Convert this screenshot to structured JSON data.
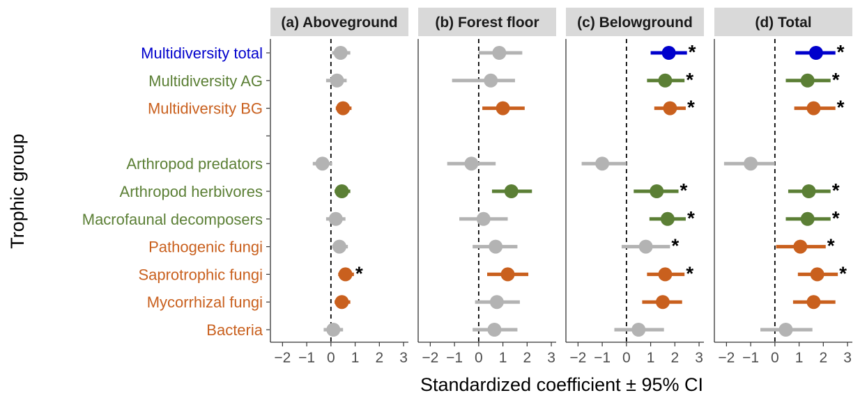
{
  "chart_data": {
    "type": "forest",
    "xlabel": "Standardized coefficient ± 95% CI",
    "ylabel": "Trophic group",
    "xlim": [
      -2.5,
      3.2
    ],
    "xticks": [
      -2,
      -1,
      0,
      1,
      2,
      3
    ],
    "xtick_labels": [
      "−2",
      "−1",
      "0",
      "1",
      "2",
      "3"
    ],
    "reference_line": 0,
    "colors": {
      "total": "#0000cc",
      "aboveground": "#5b7f35",
      "belowground": "#c9601e",
      "nonsignificant": "#b3b3b3"
    },
    "rows": [
      {
        "label": "Multidiversity total",
        "group": "total"
      },
      {
        "label": "Multidiversity AG",
        "group": "aboveground"
      },
      {
        "label": "Multidiversity BG",
        "group": "belowground"
      },
      {
        "label": "",
        "group": "spacer"
      },
      {
        "label": "Arthropod predators",
        "group": "aboveground"
      },
      {
        "label": "Arthropod herbivores",
        "group": "aboveground"
      },
      {
        "label": "Macrofaunal decomposers",
        "group": "aboveground"
      },
      {
        "label": "Pathogenic fungi",
        "group": "belowground"
      },
      {
        "label": "Saprotrophic fungi",
        "group": "belowground"
      },
      {
        "label": "Mycorrhizal fungi",
        "group": "belowground"
      },
      {
        "label": "Bacteria",
        "group": "belowground"
      }
    ],
    "panels": [
      {
        "title": "(a) Aboveground",
        "points": [
          {
            "row": 0,
            "est": 0.4,
            "lo": 0.05,
            "hi": 0.8,
            "sig": false,
            "star": false
          },
          {
            "row": 1,
            "est": 0.25,
            "lo": -0.2,
            "hi": 0.65,
            "sig": false,
            "star": false
          },
          {
            "row": 2,
            "est": 0.5,
            "lo": 0.2,
            "hi": 0.85,
            "sig": true,
            "star": false
          },
          {
            "row": 4,
            "est": -0.35,
            "lo": -0.75,
            "hi": 0.05,
            "sig": false,
            "star": false
          },
          {
            "row": 5,
            "est": 0.45,
            "lo": 0.15,
            "hi": 0.8,
            "sig": true,
            "star": false
          },
          {
            "row": 6,
            "est": 0.2,
            "lo": -0.2,
            "hi": 0.6,
            "sig": false,
            "star": false
          },
          {
            "row": 7,
            "est": 0.35,
            "lo": 0.05,
            "hi": 0.7,
            "sig": false,
            "star": false
          },
          {
            "row": 8,
            "est": 0.6,
            "lo": 0.3,
            "hi": 0.95,
            "sig": true,
            "star": true
          },
          {
            "row": 9,
            "est": 0.45,
            "lo": 0.15,
            "hi": 0.8,
            "sig": true,
            "star": false
          },
          {
            "row": 10,
            "est": 0.1,
            "lo": -0.3,
            "hi": 0.5,
            "sig": false,
            "star": false
          }
        ]
      },
      {
        "title": "(b) Forest floor",
        "points": [
          {
            "row": 0,
            "est": 0.85,
            "lo": 0.0,
            "hi": 1.8,
            "sig": false,
            "star": false
          },
          {
            "row": 1,
            "est": 0.5,
            "lo": -1.1,
            "hi": 1.5,
            "sig": false,
            "star": false
          },
          {
            "row": 2,
            "est": 1.0,
            "lo": 0.15,
            "hi": 1.9,
            "sig": true,
            "star": false
          },
          {
            "row": 4,
            "est": -0.3,
            "lo": -1.3,
            "hi": 0.7,
            "sig": false,
            "star": false
          },
          {
            "row": 5,
            "est": 1.35,
            "lo": 0.55,
            "hi": 2.2,
            "sig": true,
            "star": false
          },
          {
            "row": 6,
            "est": 0.2,
            "lo": -0.8,
            "hi": 1.2,
            "sig": false,
            "star": false
          },
          {
            "row": 7,
            "est": 0.7,
            "lo": -0.25,
            "hi": 1.6,
            "sig": false,
            "star": false
          },
          {
            "row": 8,
            "est": 1.2,
            "lo": 0.35,
            "hi": 2.05,
            "sig": true,
            "star": false
          },
          {
            "row": 9,
            "est": 0.75,
            "lo": -0.15,
            "hi": 1.7,
            "sig": false,
            "star": false
          },
          {
            "row": 10,
            "est": 0.65,
            "lo": -0.25,
            "hi": 1.6,
            "sig": false,
            "star": false
          }
        ]
      },
      {
        "title": "(c) Belowground",
        "points": [
          {
            "row": 0,
            "est": 1.75,
            "lo": 1.0,
            "hi": 2.5,
            "sig": true,
            "star": true
          },
          {
            "row": 1,
            "est": 1.6,
            "lo": 0.85,
            "hi": 2.4,
            "sig": true,
            "star": true
          },
          {
            "row": 2,
            "est": 1.8,
            "lo": 1.15,
            "hi": 2.45,
            "sig": true,
            "star": true
          },
          {
            "row": 4,
            "est": -1.0,
            "lo": -1.85,
            "hi": 0.0,
            "sig": false,
            "star": false
          },
          {
            "row": 5,
            "est": 1.25,
            "lo": 0.3,
            "hi": 2.15,
            "sig": true,
            "star": true
          },
          {
            "row": 6,
            "est": 1.7,
            "lo": 0.95,
            "hi": 2.45,
            "sig": true,
            "star": true
          },
          {
            "row": 7,
            "est": 0.8,
            "lo": -0.2,
            "hi": 1.8,
            "sig": false,
            "star": true
          },
          {
            "row": 8,
            "est": 1.6,
            "lo": 0.85,
            "hi": 2.4,
            "sig": true,
            "star": true
          },
          {
            "row": 9,
            "est": 1.5,
            "lo": 0.65,
            "hi": 2.3,
            "sig": true,
            "star": false
          },
          {
            "row": 10,
            "est": 0.5,
            "lo": -0.5,
            "hi": 1.55,
            "sig": false,
            "star": false
          }
        ]
      },
      {
        "title": "(d) Total",
        "points": [
          {
            "row": 0,
            "est": 1.7,
            "lo": 0.85,
            "hi": 2.5,
            "sig": true,
            "star": true
          },
          {
            "row": 1,
            "est": 1.35,
            "lo": 0.45,
            "hi": 2.3,
            "sig": true,
            "star": true
          },
          {
            "row": 2,
            "est": 1.6,
            "lo": 0.8,
            "hi": 2.5,
            "sig": true,
            "star": true
          },
          {
            "row": 4,
            "est": -1.0,
            "lo": -2.1,
            "hi": 0.0,
            "sig": false,
            "star": false
          },
          {
            "row": 5,
            "est": 1.4,
            "lo": 0.55,
            "hi": 2.3,
            "sig": true,
            "star": true
          },
          {
            "row": 6,
            "est": 1.35,
            "lo": 0.45,
            "hi": 2.3,
            "sig": true,
            "star": true
          },
          {
            "row": 7,
            "est": 1.05,
            "lo": 0.05,
            "hi": 2.1,
            "sig": true,
            "star": true
          },
          {
            "row": 8,
            "est": 1.75,
            "lo": 0.95,
            "hi": 2.6,
            "sig": true,
            "star": true
          },
          {
            "row": 9,
            "est": 1.6,
            "lo": 0.75,
            "hi": 2.5,
            "sig": true,
            "star": false
          },
          {
            "row": 10,
            "est": 0.45,
            "lo": -0.6,
            "hi": 1.55,
            "sig": false,
            "star": false
          }
        ]
      }
    ]
  }
}
